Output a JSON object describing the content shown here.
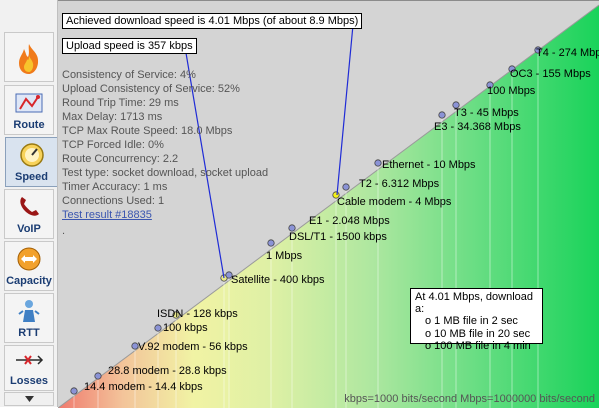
{
  "sidebar": {
    "items": [
      {
        "label": "",
        "icon": "flame-icon"
      },
      {
        "label": "Route",
        "icon": "route-map-icon"
      },
      {
        "label": "Speed",
        "icon": "speedometer-icon",
        "active": true
      },
      {
        "label": "VoIP",
        "icon": "phone-icon"
      },
      {
        "label": "Capacity",
        "icon": "capacity-arrows-icon"
      },
      {
        "label": "RTT",
        "icon": "rtt-person-icon"
      },
      {
        "label": "Losses",
        "icon": "losses-icon"
      }
    ]
  },
  "headline": {
    "download": "Achieved download speed is 4.01 Mbps (of about 8.9 Mbps)",
    "upload": "Upload speed is 357 kbps"
  },
  "stats": [
    "Consistency of Service: 4%",
    "Upload Consistency of Service: 52%",
    "Round Trip Time: 29 ms",
    "Max Delay: 1713 ms",
    "TCP Max Route Speed: 18.0 Mbps",
    "TCP Forced Idle: 0%",
    "Route Concurrency: 2.2",
    "Test type: socket download, socket upload",
    "Timer Accuracy: 1 ms",
    "Connections Used: 1"
  ],
  "result_link": "Test result #18835",
  "dot_mark": ".",
  "speed_points": [
    {
      "label": "14.4 modem - 14.4 kbps"
    },
    {
      "label": "28.8 modem - 28.8 kbps"
    },
    {
      "label": "V.92 modem - 56 kbps"
    },
    {
      "label": "100 kbps"
    },
    {
      "label": "ISDN - 128 kbps"
    },
    {
      "label": "Satellite - 400 kbps"
    },
    {
      "label": "1 Mbps"
    },
    {
      "label": "DSL/T1 - 1500 kbps"
    },
    {
      "label": "E1 - 2.048 Mbps"
    },
    {
      "label": "Cable modem - 4 Mbps"
    },
    {
      "label": "T2 - 6.312 Mbps"
    },
    {
      "label": "Ethernet - 10 Mbps"
    },
    {
      "label": "E3 - 34.368 Mbps"
    },
    {
      "label": "T3 - 45 Mbps"
    },
    {
      "label": "100 Mbps"
    },
    {
      "label": "OC3 - 155 Mbps"
    },
    {
      "label": "T4 - 274 Mbps"
    }
  ],
  "download_box": {
    "title": "At 4.01 Mbps, download a:",
    "rows": [
      "o  1 MB file in 2 sec",
      "o  10 MB file in 20 sec",
      "o  100 MB file in 4 min"
    ]
  },
  "footer": "kbps=1000 bits/second  Mbps=1000000 bits/second",
  "colors": {
    "slow": "#f07a6e",
    "medium": "#f1f3a4",
    "fast": "#19d35a",
    "pointer_line": "#1f2bd6",
    "link": "#3b56b0",
    "sidebar_label": "#1b3d73"
  }
}
